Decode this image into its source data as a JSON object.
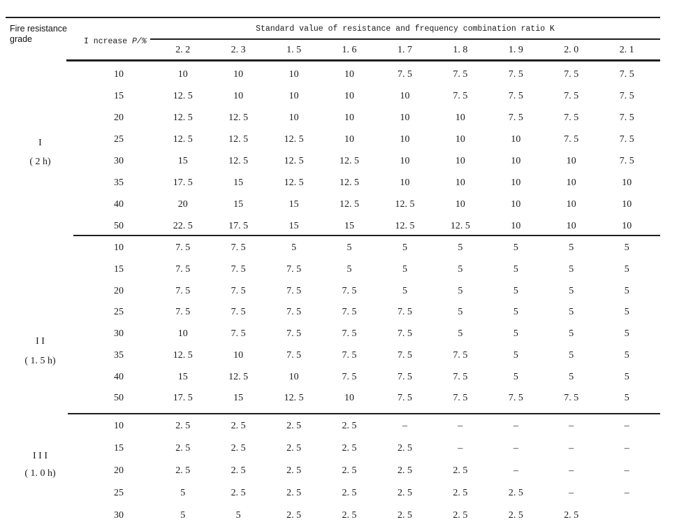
{
  "table": {
    "corner_header": {
      "line1": "Fire resistance",
      "line2": "grade"
    },
    "increase_header": {
      "prefix": "I ncrease",
      "symbol": "P/%"
    },
    "k_header": "Standard value of resistance and frequency combination ratio K",
    "k_columns": [
      "2. 2",
      "2. 3",
      "1. 5",
      "1. 6",
      "1. 7",
      "1. 8",
      "1. 9",
      "2. 0",
      "2. 1"
    ],
    "groups": [
      {
        "grade": "I",
        "duration": "( 2 h)",
        "rows": [
          {
            "increase": "10",
            "values": [
              "10",
              "10",
              "10",
              "10",
              "7. 5",
              "7. 5",
              "7. 5",
              "7. 5",
              "7. 5"
            ]
          },
          {
            "increase": "15",
            "values": [
              "12. 5",
              "10",
              "10",
              "10",
              "10",
              "7. 5",
              "7. 5",
              "7. 5",
              "7. 5"
            ]
          },
          {
            "increase": "20",
            "values": [
              "12. 5",
              "12. 5",
              "10",
              "10",
              "10",
              "10",
              "7. 5",
              "7. 5",
              "7. 5"
            ]
          },
          {
            "increase": "25",
            "values": [
              "12. 5",
              "12. 5",
              "12. 5",
              "10",
              "10",
              "10",
              "10",
              "7. 5",
              "7. 5"
            ]
          },
          {
            "increase": "30",
            "values": [
              "15",
              "12. 5",
              "12. 5",
              "12. 5",
              "10",
              "10",
              "10",
              "10",
              "7. 5"
            ]
          },
          {
            "increase": "35",
            "values": [
              "17. 5",
              "15",
              "12. 5",
              "12. 5",
              "10",
              "10",
              "10",
              "10",
              "10"
            ]
          },
          {
            "increase": "40",
            "values": [
              "20",
              "15",
              "15",
              "12. 5",
              "12. 5",
              "10",
              "10",
              "10",
              "10"
            ]
          },
          {
            "increase": "50",
            "values": [
              "22. 5",
              "17. 5",
              "15",
              "15",
              "12. 5",
              "12. 5",
              "10",
              "10",
              "10"
            ]
          }
        ]
      },
      {
        "grade": "I I",
        "duration": "( 1. 5 h)",
        "rows": [
          {
            "increase": "10",
            "values": [
              "7. 5",
              "7. 5",
              "5",
              "5",
              "5",
              "5",
              "5",
              "5",
              "5"
            ]
          },
          {
            "increase": "15",
            "values": [
              "7. 5",
              "7. 5",
              "7. 5",
              "5",
              "5",
              "5",
              "5",
              "5",
              "5"
            ]
          },
          {
            "increase": "20",
            "values": [
              "7. 5",
              "7. 5",
              "7. 5",
              "7. 5",
              "5",
              "5",
              "5",
              "5",
              "5"
            ]
          },
          {
            "increase": "25",
            "values": [
              "7. 5",
              "7. 5",
              "7. 5",
              "7. 5",
              "7. 5",
              "5",
              "5",
              "5",
              "5"
            ]
          },
          {
            "increase": "30",
            "values": [
              "10",
              "7. 5",
              "7. 5",
              "7. 5",
              "7. 5",
              "5",
              "5",
              "5",
              "5"
            ]
          },
          {
            "increase": "35",
            "values": [
              "12. 5",
              "10",
              "7. 5",
              "7. 5",
              "7. 5",
              "7. 5",
              "5",
              "5",
              "5"
            ]
          },
          {
            "increase": "40",
            "values": [
              "15",
              "12. 5",
              "10",
              "7. 5",
              "7. 5",
              "7. 5",
              "5",
              "5",
              "5"
            ]
          },
          {
            "increase": "50",
            "values": [
              "17. 5",
              "15",
              "12. 5",
              "10",
              "7. 5",
              "7. 5",
              "7. 5",
              "7. 5",
              "5"
            ]
          }
        ]
      },
      {
        "grade": "I I I",
        "duration": "( 1. 0 h)",
        "rows": [
          {
            "increase": "10",
            "values": [
              "2. 5",
              "2. 5",
              "2. 5",
              "2. 5",
              "–",
              "–",
              "–",
              "–",
              "–"
            ]
          },
          {
            "increase": "15",
            "values": [
              "2. 5",
              "2. 5",
              "2. 5",
              "2. 5",
              "2. 5",
              "–",
              "–",
              "–",
              "–"
            ]
          },
          {
            "increase": "20",
            "values": [
              "2. 5",
              "2. 5",
              "2. 5",
              "2. 5",
              "2. 5",
              "2. 5",
              "–",
              "–",
              "–"
            ]
          },
          {
            "increase": "25",
            "values": [
              "5",
              "2. 5",
              "2. 5",
              "2. 5",
              "2. 5",
              "2. 5",
              "2. 5",
              "–",
              "–"
            ]
          },
          {
            "increase": "30",
            "values": [
              "5",
              "5",
              "2. 5",
              "2. 5",
              "2. 5",
              "2. 5",
              "2. 5",
              "2. 5",
              ""
            ]
          }
        ]
      }
    ]
  }
}
